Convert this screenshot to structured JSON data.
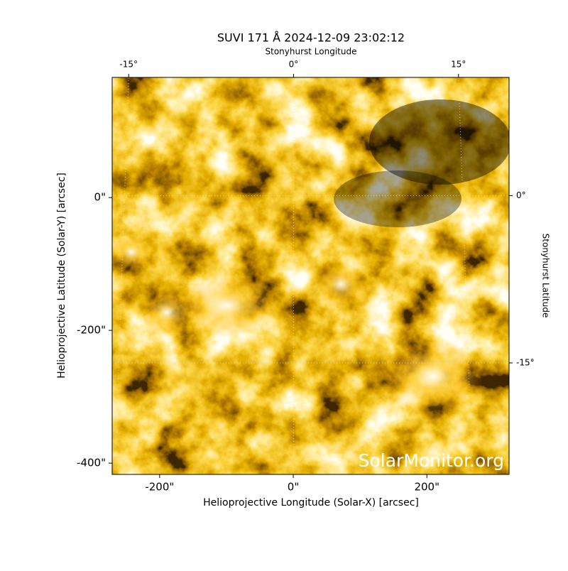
{
  "chart_data": {
    "type": "image",
    "title": "SUVI 171 Å 2024-12-09 23:02:12",
    "xlabel": "Helioprojective Longitude (Solar-X) [arcsec]",
    "ylabel": "Helioprojective Latitude (Solar-Y) [arcsec]",
    "x2label": "Stonyhurst Longitude",
    "y2label": "Stonyhurst Latitude",
    "watermark": "SolarMonitor.org",
    "xlim": [
      -271,
      323
    ],
    "ylim": [
      -417,
      181
    ],
    "xticks": [
      {
        "value": -200,
        "label": "-200\""
      },
      {
        "value": 0,
        "label": "0\""
      },
      {
        "value": 200,
        "label": "200\""
      }
    ],
    "yticks": [
      {
        "value": -400,
        "label": "-400\""
      },
      {
        "value": -200,
        "label": "-200\""
      },
      {
        "value": 0,
        "label": "0\""
      }
    ],
    "x2lim": [
      -16.5,
      19.6
    ],
    "y2lim": [
      -25,
      10.6
    ],
    "x2ticks": [
      {
        "value": -15,
        "label": "-15°"
      },
      {
        "value": 0,
        "label": "0°"
      },
      {
        "value": 15,
        "label": "15°"
      }
    ],
    "y2ticks": [
      {
        "value": -15,
        "label": "-15°"
      },
      {
        "value": 0,
        "label": "0°"
      }
    ],
    "grid": true
  }
}
